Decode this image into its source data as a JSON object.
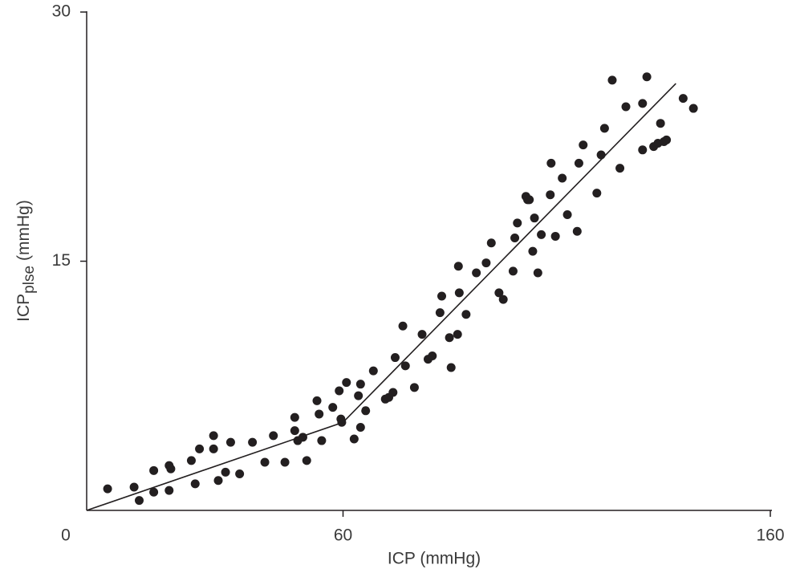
{
  "chart_data": {
    "type": "scatter",
    "xlabel": "ICP (mmHg)",
    "ylabel": {
      "main": "ICP",
      "sub": "plse",
      "unit": "(mmHg)"
    },
    "xlim": [
      0,
      160
    ],
    "xticks": [
      0,
      60,
      160
    ],
    "ylim": [
      0,
      30
    ],
    "yticks": [
      15,
      30
    ],
    "color": "#231f20",
    "series": [
      {
        "color": "#231f20",
        "x": [
          4.9,
          11.1,
          12.3,
          15.7,
          15.7,
          19.3,
          19.7,
          19.3,
          24.5,
          25.4,
          26.4,
          29.7,
          29.7,
          30.8,
          32.5,
          33.7,
          35.8,
          38.8,
          41.7,
          43.7,
          46.4,
          48.7,
          48.7,
          49.4,
          50.6,
          51.5,
          53.9,
          54.4,
          55.0,
          57.6,
          59.1,
          59.5,
          59.7,
          60.8,
          62.6,
          63.6,
          64.1,
          64.1,
          65.3,
          67.1,
          69.9,
          70.7,
          71.7,
          72.2,
          74.0,
          74.6,
          76.7,
          78.5,
          79.9,
          80.9,
          82.7,
          83.1,
          84.9,
          85.3,
          86.8,
          87.0,
          87.2,
          88.8,
          91.2,
          93.5,
          94.7,
          96.5,
          97.5,
          99.8,
          100.2,
          100.8,
          102.8,
          103.2,
          103.6,
          104.4,
          104.8,
          105.6,
          106.4,
          108.5,
          108.7,
          109.7,
          111.3,
          112.5,
          114.8,
          115.2,
          116.2,
          119.4,
          120.4,
          121.2,
          123.0,
          124.8,
          126.2,
          130.1,
          130.1,
          131.1,
          132.7,
          133.7,
          134.3,
          135.1,
          135.7,
          139.6,
          142.0
        ],
        "values": [
          1.3,
          1.4,
          0.6,
          2.4,
          1.1,
          2.7,
          2.5,
          1.2,
          3.0,
          1.6,
          3.7,
          3.7,
          4.5,
          1.8,
          2.3,
          4.1,
          2.2,
          4.1,
          2.9,
          4.5,
          2.9,
          5.6,
          4.8,
          4.2,
          4.4,
          3.0,
          6.6,
          5.8,
          4.2,
          6.2,
          7.2,
          5.5,
          5.3,
          7.7,
          4.3,
          6.9,
          7.6,
          5.0,
          6.0,
          8.4,
          6.7,
          6.8,
          7.1,
          9.2,
          11.1,
          8.7,
          7.4,
          10.6,
          9.1,
          9.3,
          11.9,
          12.9,
          10.4,
          8.6,
          10.6,
          14.7,
          13.1,
          11.8,
          14.3,
          14.9,
          16.1,
          13.1,
          12.7,
          14.4,
          16.4,
          17.3,
          18.9,
          18.7,
          18.7,
          15.6,
          17.6,
          14.3,
          16.6,
          19.0,
          20.9,
          16.5,
          20.0,
          17.8,
          16.8,
          20.9,
          22.0,
          19.1,
          21.4,
          23.0,
          25.9,
          20.6,
          24.3,
          24.5,
          21.7,
          26.1,
          21.9,
          22.1,
          23.3,
          22.2,
          22.3,
          24.8,
          24.2
        ]
      }
    ],
    "fit": {
      "color": "#231f20",
      "x": [
        0,
        60,
        137.9
      ],
      "values": [
        0,
        5.3,
        25.7
      ]
    }
  }
}
